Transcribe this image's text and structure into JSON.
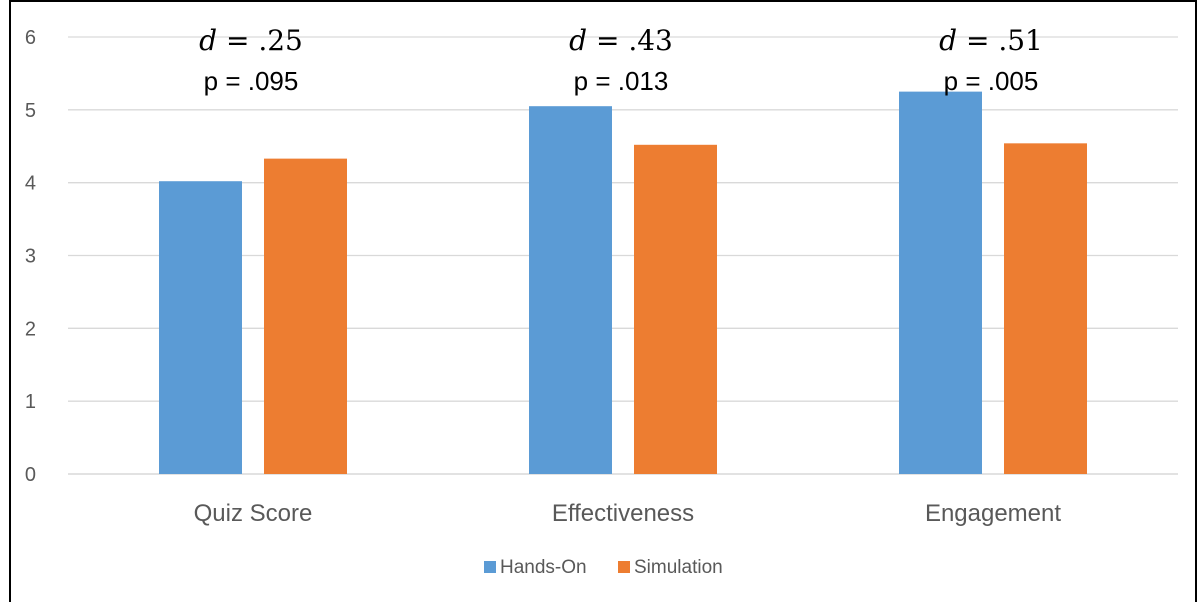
{
  "chart_data": {
    "type": "bar",
    "title": "",
    "xlabel": "",
    "ylabel": "",
    "categories": [
      "Quiz Score",
      "Effectiveness",
      "Engagement"
    ],
    "ylim": [
      0,
      6
    ],
    "yticks": [
      "0",
      "1",
      "2",
      "3",
      "4",
      "5",
      "6"
    ],
    "grid": true,
    "legend_position": "bottom",
    "series": [
      {
        "name": "Hands-On",
        "color": "#5B9BD5",
        "values": [
          4.02,
          5.05,
          5.25
        ]
      },
      {
        "name": "Simulation",
        "color": "#ED7D31",
        "values": [
          4.33,
          4.52,
          4.54
        ]
      }
    ],
    "annotations": [
      {
        "d_symbol": "d",
        "d_text": "= .25",
        "p_text": "p = .095"
      },
      {
        "d_symbol": "d",
        "d_text": "=  .43",
        "p_text": "p = .013"
      },
      {
        "d_symbol": "d",
        "d_text": "=  .51",
        "p_text": "p = .005"
      }
    ]
  }
}
